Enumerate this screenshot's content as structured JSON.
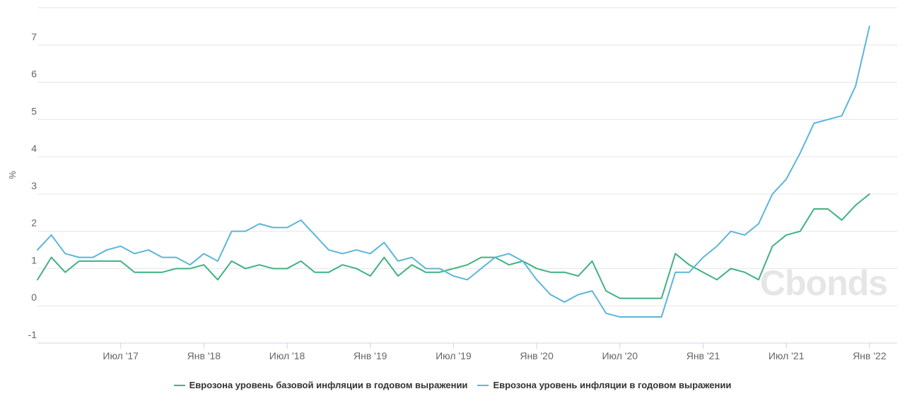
{
  "chart_data": {
    "type": "line",
    "ylabel": "%",
    "ylim": [
      -1,
      8
    ],
    "yticks": [
      "-1",
      "0",
      "1",
      "2",
      "3",
      "4",
      "5",
      "6",
      "7"
    ],
    "x_start": "2017-01",
    "x_end": "2022-03",
    "xticks": [
      {
        "label": "Июл '17",
        "date": "2017-07"
      },
      {
        "label": "Янв '18",
        "date": "2018-01"
      },
      {
        "label": "Июл '18",
        "date": "2018-07"
      },
      {
        "label": "Янв '19",
        "date": "2019-01"
      },
      {
        "label": "Июл '19",
        "date": "2019-07"
      },
      {
        "label": "Янв '20",
        "date": "2020-01"
      },
      {
        "label": "Июл '20",
        "date": "2020-07"
      },
      {
        "label": "Янв '21",
        "date": "2021-01"
      },
      {
        "label": "Июл '21",
        "date": "2021-07"
      },
      {
        "label": "Янв '22",
        "date": "2022-01"
      }
    ],
    "grid": true,
    "legend_position": "bottom",
    "series": [
      {
        "name": "Еврозона уровень базовой инфляции в годовом выражении",
        "color": "#3fb27f",
        "values": [
          0.7,
          1.3,
          0.9,
          1.2,
          1.2,
          1.2,
          1.2,
          0.9,
          0.9,
          0.9,
          1.0,
          1.0,
          1.1,
          0.7,
          1.2,
          1.0,
          1.1,
          1.0,
          1.0,
          1.2,
          0.9,
          0.9,
          1.1,
          1.0,
          0.8,
          1.3,
          0.8,
          1.1,
          0.9,
          0.9,
          1.0,
          1.1,
          1.3,
          1.3,
          1.1,
          1.2,
          1.0,
          0.9,
          0.9,
          0.8,
          1.2,
          0.4,
          0.2,
          0.2,
          0.2,
          0.2,
          1.4,
          1.1,
          0.9,
          0.7,
          1.0,
          0.9,
          0.7,
          1.6,
          1.9,
          2.0,
          2.6,
          2.6,
          2.3,
          2.7,
          3.0
        ]
      },
      {
        "name": "Еврозона уровень инфляции в годовом выражении",
        "color": "#5bb6d9",
        "values": [
          1.5,
          1.9,
          1.4,
          1.3,
          1.3,
          1.5,
          1.6,
          1.4,
          1.5,
          1.3,
          1.3,
          1.1,
          1.4,
          1.2,
          2.0,
          2.0,
          2.2,
          2.1,
          2.1,
          2.3,
          1.9,
          1.5,
          1.4,
          1.5,
          1.4,
          1.7,
          1.2,
          1.3,
          1.0,
          1.0,
          0.8,
          0.7,
          1.0,
          1.3,
          1.4,
          1.2,
          0.7,
          0.3,
          0.1,
          0.3,
          0.4,
          -0.2,
          -0.3,
          -0.3,
          -0.3,
          -0.3,
          0.9,
          0.9,
          1.3,
          1.6,
          2.0,
          1.9,
          2.2,
          3.0,
          3.4,
          4.1,
          4.9,
          5.0,
          5.1,
          5.9,
          7.5
        ]
      }
    ]
  },
  "watermark": "Cbonds",
  "legend": {
    "items": [
      {
        "label": "Еврозона уровень базовой инфляции в годовом выражении",
        "color": "#3fb27f"
      },
      {
        "label": "Еврозона уровень инфляции в годовом выражении",
        "color": "#5bb6d9"
      }
    ]
  }
}
